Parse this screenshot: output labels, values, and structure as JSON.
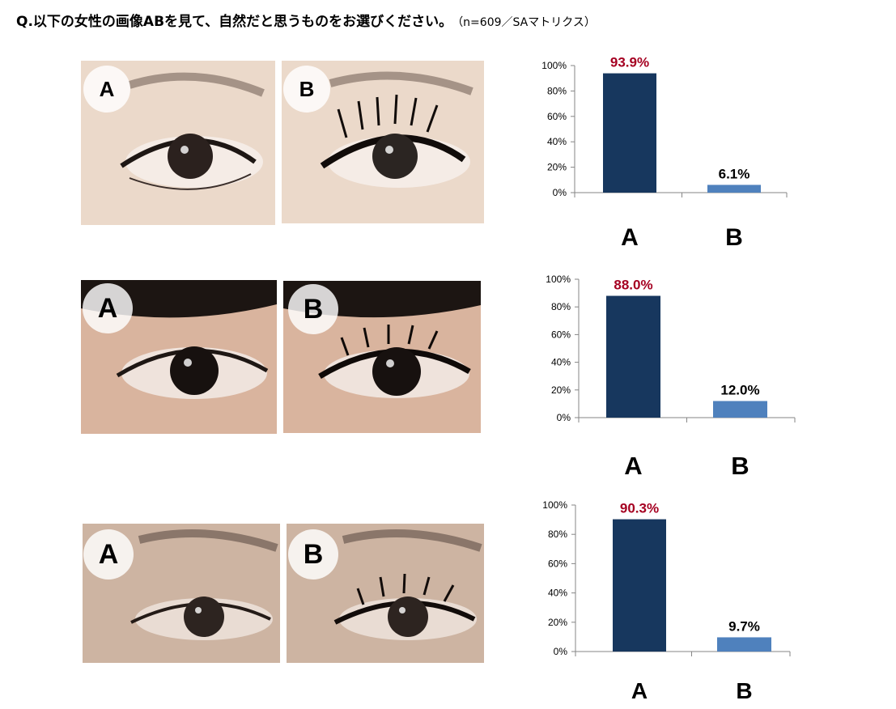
{
  "header": {
    "question": "Q.以下の女性の画像ABを見て、自然だと思うものをお選びください。",
    "note": "（n=609／SAマトリクス）"
  },
  "photos": {
    "label_a": "A",
    "label_b": "B"
  },
  "colors": {
    "bar_a": "#17375e",
    "bar_b": "#4f81bd",
    "label_a": "#a50021",
    "label_b": "#000000"
  },
  "chart_data": [
    {
      "type": "bar",
      "categories": [
        "A",
        "B"
      ],
      "values": [
        93.9,
        6.1
      ],
      "value_labels": [
        "93.9%",
        "6.1%"
      ],
      "ylim": [
        0,
        100
      ],
      "yticks": [
        "0%",
        "20%",
        "40%",
        "60%",
        "80%",
        "100%"
      ],
      "grid": false,
      "legend": "none"
    },
    {
      "type": "bar",
      "categories": [
        "A",
        "B"
      ],
      "values": [
        88.0,
        12.0
      ],
      "value_labels": [
        "88.0%",
        "12.0%"
      ],
      "ylim": [
        0,
        100
      ],
      "yticks": [
        "0%",
        "20%",
        "40%",
        "60%",
        "80%",
        "100%"
      ],
      "grid": false,
      "legend": "none"
    },
    {
      "type": "bar",
      "categories": [
        "A",
        "B"
      ],
      "values": [
        90.3,
        9.7
      ],
      "value_labels": [
        "90.3%",
        "9.7%"
      ],
      "ylim": [
        0,
        100
      ],
      "yticks": [
        "0%",
        "20%",
        "40%",
        "60%",
        "80%",
        "100%"
      ],
      "grid": false,
      "legend": "none"
    }
  ]
}
